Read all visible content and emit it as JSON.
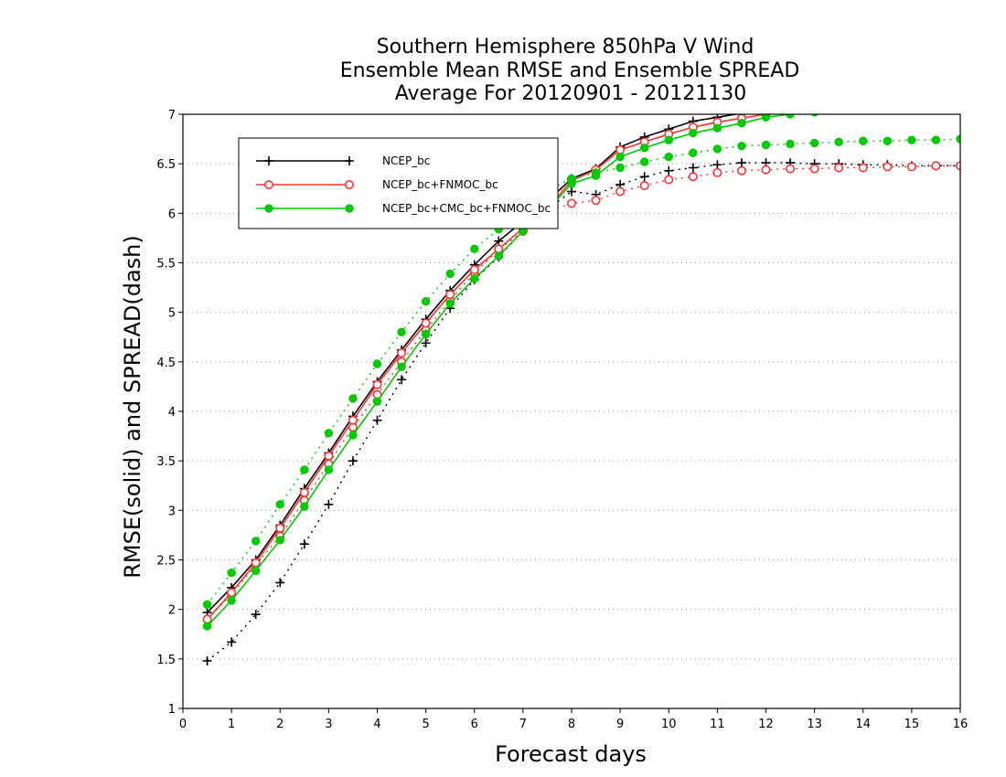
{
  "chart_data": {
    "type": "line",
    "title": [
      "Southern Hemisphere 850hPa V Wind",
      "Ensemble Mean RMSE and Ensemble SPREAD",
      "Average For 20120901 - 20121130"
    ],
    "xlabel": "Forecast days",
    "ylabel": "RMSE(solid) and SPREAD(dash)",
    "xlim": [
      0,
      16
    ],
    "ylim": [
      1,
      7
    ],
    "xticks": [
      0,
      1,
      2,
      3,
      4,
      5,
      6,
      7,
      8,
      9,
      10,
      11,
      12,
      13,
      14,
      15,
      16
    ],
    "yticks": [
      1,
      1.5,
      2,
      2.5,
      3,
      3.5,
      4,
      4.5,
      5,
      5.5,
      6,
      6.5,
      7
    ],
    "ytick_labels": [
      "1",
      "1.5",
      "2",
      "2.5",
      "3",
      "3.5",
      "4",
      "4.5",
      "5",
      "5.5",
      "6",
      "6.5",
      "7"
    ],
    "grid": "horizontal dotted",
    "legend_position": "top-left",
    "x": [
      0.5,
      1,
      1.5,
      2,
      2.5,
      3,
      3.5,
      4,
      4.5,
      5,
      5.5,
      6,
      6.5,
      7,
      7.5,
      8,
      8.5,
      9,
      9.5,
      10,
      10.5,
      11,
      11.5,
      12,
      12.5,
      13,
      13.5,
      14,
      14.5,
      15,
      15.5,
      16
    ],
    "series": [
      {
        "name": "NCEP_bc",
        "color": "#000000",
        "marker": "plus",
        "rmse": [
          1.97,
          2.22,
          2.5,
          2.85,
          3.22,
          3.58,
          3.95,
          4.3,
          4.62,
          4.93,
          5.22,
          5.48,
          5.72,
          5.92,
          6.12,
          6.35,
          6.45,
          6.67,
          6.77,
          6.85,
          6.93,
          6.97,
          7.01,
          7.04,
          7.06,
          7.08,
          7.09,
          7.1,
          7.11,
          7.12,
          7.13,
          7.14
        ],
        "spread": [
          1.48,
          1.67,
          1.95,
          2.27,
          2.66,
          3.06,
          3.5,
          3.91,
          4.32,
          4.69,
          5.04,
          5.33,
          5.56,
          5.82,
          6.04,
          6.22,
          6.19,
          6.29,
          6.37,
          6.43,
          6.46,
          6.49,
          6.51,
          6.51,
          6.51,
          6.5,
          6.5,
          6.49,
          6.49,
          6.48,
          6.48,
          6.48
        ]
      },
      {
        "name": "NCEP_bc+FNMOC_bc",
        "color": "#ff3333",
        "marker": "open-circle",
        "rmse": [
          1.9,
          2.17,
          2.47,
          2.82,
          3.18,
          3.55,
          3.91,
          4.27,
          4.59,
          4.89,
          5.18,
          5.43,
          5.64,
          5.85,
          6.05,
          6.33,
          6.44,
          6.64,
          6.72,
          6.8,
          6.87,
          6.92,
          6.96,
          7.0,
          7.03,
          7.05,
          7.06,
          7.07,
          7.08,
          7.09,
          7.1,
          7.11
        ],
        "spread": [
          1.9,
          2.15,
          2.45,
          2.74,
          3.1,
          3.47,
          3.84,
          4.17,
          4.5,
          4.82,
          5.12,
          5.4,
          5.63,
          5.82,
          6.02,
          6.1,
          6.13,
          6.22,
          6.28,
          6.34,
          6.37,
          6.41,
          6.43,
          6.44,
          6.45,
          6.45,
          6.46,
          6.46,
          6.47,
          6.47,
          6.48,
          6.48
        ]
      },
      {
        "name": "NCEP_bc+CMC_bc+FNMOC_bc",
        "color": "#00cc00",
        "marker": "filled-circle",
        "rmse": [
          1.83,
          2.09,
          2.39,
          2.7,
          3.04,
          3.41,
          3.76,
          4.1,
          4.45,
          4.78,
          5.09,
          5.34,
          5.57,
          5.82,
          6.03,
          6.3,
          6.38,
          6.57,
          6.66,
          6.74,
          6.81,
          6.86,
          6.91,
          6.97,
          7.0,
          7.02,
          7.04,
          7.05,
          7.06,
          7.07,
          7.08,
          7.09
        ],
        "spread": [
          2.05,
          2.37,
          2.69,
          3.06,
          3.41,
          3.78,
          4.13,
          4.48,
          4.8,
          5.11,
          5.39,
          5.64,
          5.84,
          6.03,
          6.23,
          6.35,
          6.41,
          6.46,
          6.52,
          6.57,
          6.61,
          6.65,
          6.68,
          6.69,
          6.7,
          6.71,
          6.72,
          6.73,
          6.73,
          6.74,
          6.74,
          6.75
        ]
      }
    ]
  }
}
